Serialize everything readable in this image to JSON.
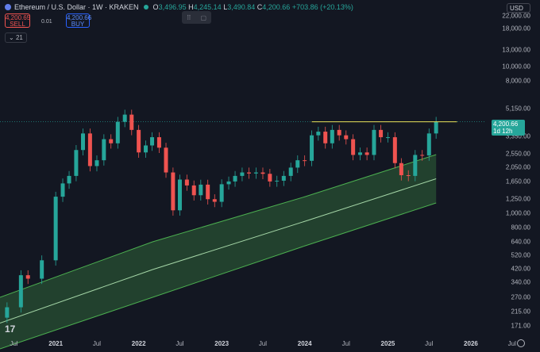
{
  "header": {
    "symbol": "Ethereum / U.S. Dollar · 1W · KRAKEN",
    "o_label": "O",
    "o": "3,496.95",
    "h_label": "H",
    "h": "4,245.14",
    "l_label": "L",
    "l": "3,490.84",
    "c_label": "C",
    "c": "4,200.66",
    "change": "+703.86 (+20.13%)"
  },
  "trade": {
    "sell_price": "4,200.65",
    "sell_label": "SELL",
    "spread": "0.01",
    "buy_price": "4,200.66",
    "buy_label": "BUY"
  },
  "indicator": "21",
  "currency": "USD",
  "last_price": {
    "value": "4,200.66",
    "countdown": "1d 12h"
  },
  "colors": {
    "up": "#26a69a",
    "down": "#ef5350",
    "band": "#4caf50",
    "resistance": "#e8e25a",
    "background": "#131722"
  },
  "y_axis": [
    "22,000.00",
    "18,000.00",
    "13,000.00",
    "10,000.00",
    "8,000.00",
    "5,150.00",
    "3,350.00",
    "2,550.00",
    "2,050.00",
    "1,650.00",
    "1,250.00",
    "1,000.00",
    "800.00",
    "640.00",
    "520.00",
    "420.00",
    "340.00",
    "270.00",
    "215.00",
    "171.00"
  ],
  "x_axis": [
    "Jul",
    "2021",
    "Jul",
    "2022",
    "Jul",
    "2023",
    "Jul",
    "2024",
    "Jul",
    "2025",
    "Jul",
    "2026",
    "Jul"
  ],
  "chart_data": {
    "type": "candlestick",
    "scale": "log",
    "ylim": [
      150,
      25000
    ],
    "x_range": [
      "2020-05",
      "2026-11"
    ],
    "series": [
      {
        "name": "ETHUSD",
        "points": [
          [
            "2020-06",
            230
          ],
          [
            "2020-08",
            380
          ],
          [
            "2020-09",
            360
          ],
          [
            "2020-11",
            480
          ],
          [
            "2021-01",
            1300
          ],
          [
            "2021-02",
            1600
          ],
          [
            "2021-03",
            1800
          ],
          [
            "2021-04",
            2700
          ],
          [
            "2021-05",
            3500
          ],
          [
            "2021-06",
            2100
          ],
          [
            "2021-07",
            2300
          ],
          [
            "2021-08",
            3200
          ],
          [
            "2021-09",
            3000
          ],
          [
            "2021-10",
            4200
          ],
          [
            "2021-11",
            4700
          ],
          [
            "2021-12",
            3700
          ],
          [
            "2022-01",
            2600
          ],
          [
            "2022-02",
            2900
          ],
          [
            "2022-03",
            3300
          ],
          [
            "2022-04",
            2800
          ],
          [
            "2022-05",
            1900
          ],
          [
            "2022-06",
            1050
          ],
          [
            "2022-07",
            1700
          ],
          [
            "2022-08",
            1550
          ],
          [
            "2022-09",
            1330
          ],
          [
            "2022-10",
            1570
          ],
          [
            "2022-11",
            1250
          ],
          [
            "2022-12",
            1200
          ],
          [
            "2023-01",
            1580
          ],
          [
            "2023-02",
            1650
          ],
          [
            "2023-03",
            1800
          ],
          [
            "2023-04",
            1900
          ],
          [
            "2023-05",
            1870
          ],
          [
            "2023-06",
            1900
          ],
          [
            "2023-07",
            1860
          ],
          [
            "2023-08",
            1650
          ],
          [
            "2023-09",
            1670
          ],
          [
            "2023-10",
            1800
          ],
          [
            "2023-11",
            2050
          ],
          [
            "2023-12",
            2300
          ],
          [
            "2024-01",
            2280
          ],
          [
            "2024-02",
            3400
          ],
          [
            "2024-03",
            3600
          ],
          [
            "2024-04",
            3000
          ],
          [
            "2024-05",
            3700
          ],
          [
            "2024-06",
            3400
          ],
          [
            "2024-07",
            3200
          ],
          [
            "2024-08",
            2500
          ],
          [
            "2024-09",
            2600
          ],
          [
            "2024-10",
            2500
          ],
          [
            "2024-11",
            3700
          ],
          [
            "2024-12",
            3300
          ],
          [
            "2025-01",
            3300
          ],
          [
            "2025-02",
            2200
          ],
          [
            "2025-03",
            1820
          ],
          [
            "2025-04",
            1800
          ],
          [
            "2025-05",
            2500
          ],
          [
            "2025-06",
            2480
          ],
          [
            "2025-07",
            3500
          ],
          [
            "2025-08",
            4200
          ]
        ]
      }
    ],
    "resistance_level": 4200,
    "band": {
      "from": "2020-05",
      "to": "2025-08"
    }
  }
}
